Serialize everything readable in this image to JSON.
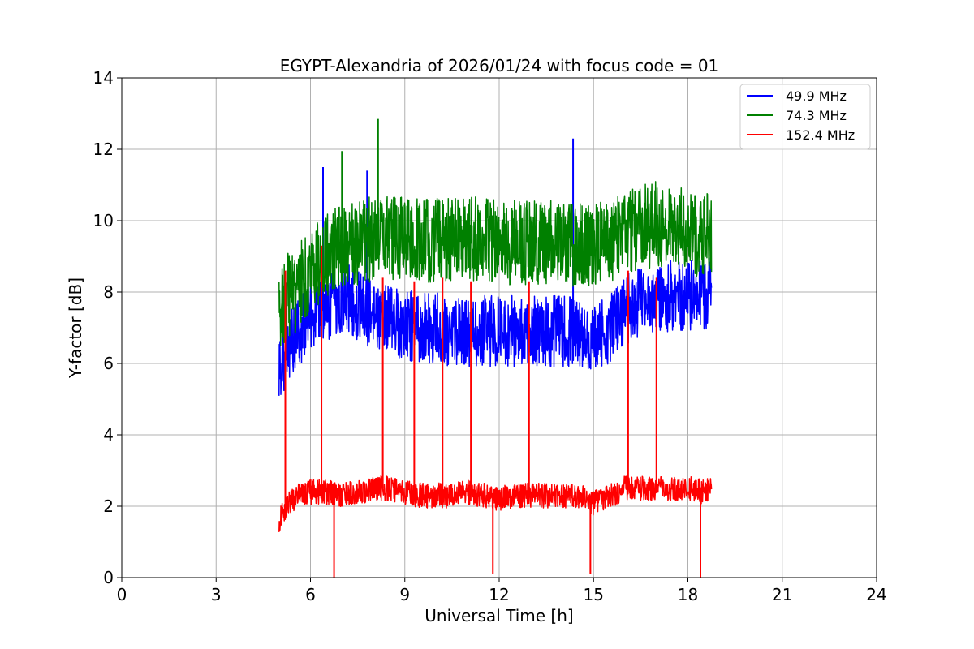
{
  "chart_data": {
    "type": "line",
    "title": "EGYPT-Alexandria of 2026/01/24 with focus code = 01",
    "xlabel": "Universal Time [h]",
    "ylabel": "Y-factor [dB]",
    "xlim": [
      0,
      24
    ],
    "ylim": [
      0,
      14
    ],
    "xticks": [
      0,
      3,
      6,
      9,
      12,
      15,
      18,
      21,
      24
    ],
    "yticks": [
      0,
      2,
      4,
      6,
      8,
      10,
      12,
      14
    ],
    "xtick_labels": [
      "0",
      "3",
      "6",
      "9",
      "12",
      "15",
      "18",
      "21",
      "24"
    ],
    "ytick_labels": [
      "0",
      "2",
      "4",
      "6",
      "8",
      "10",
      "12",
      "14"
    ],
    "grid": true,
    "legend_position": "top-right",
    "series": [
      {
        "name": " 49.9 MHz",
        "color": "#0000ff",
        "x": [
          5.0,
          5.3,
          5.6,
          6.0,
          6.5,
          7.0,
          7.5,
          8.0,
          8.5,
          9.0,
          9.5,
          10.0,
          10.5,
          11.0,
          11.5,
          12.0,
          12.5,
          13.0,
          13.5,
          14.0,
          14.5,
          15.0,
          15.5,
          16.0,
          16.5,
          17.0,
          17.5,
          18.0,
          18.5,
          18.75
        ],
        "y": [
          5.9,
          6.4,
          6.8,
          7.4,
          7.6,
          7.9,
          7.6,
          7.3,
          7.2,
          7.1,
          7.0,
          7.0,
          6.9,
          6.9,
          6.9,
          6.9,
          6.9,
          6.9,
          6.9,
          6.9,
          6.9,
          6.8,
          6.9,
          7.5,
          7.7,
          7.8,
          7.9,
          7.9,
          7.9,
          8.0
        ],
        "spikes": [
          {
            "x": 6.4,
            "y": 11.5
          },
          {
            "x": 7.8,
            "y": 11.4
          },
          {
            "x": 14.35,
            "y": 12.3
          }
        ]
      },
      {
        "name": " 74.3 MHz",
        "color": "#008000",
        "x": [
          5.0,
          5.3,
          5.6,
          6.0,
          6.5,
          7.0,
          7.5,
          8.0,
          8.5,
          9.0,
          9.5,
          10.0,
          10.5,
          11.0,
          11.5,
          12.0,
          12.5,
          13.0,
          13.5,
          14.0,
          14.5,
          15.0,
          15.5,
          16.0,
          16.5,
          17.0,
          17.5,
          18.0,
          18.5,
          18.75
        ],
        "y": [
          7.6,
          7.9,
          8.1,
          8.6,
          9.0,
          9.3,
          9.4,
          9.5,
          9.5,
          9.5,
          9.4,
          9.5,
          9.4,
          9.5,
          9.5,
          9.4,
          9.4,
          9.4,
          9.4,
          9.3,
          9.3,
          9.3,
          9.4,
          9.6,
          9.8,
          9.9,
          9.8,
          9.7,
          9.6,
          9.6
        ],
        "spikes": [
          {
            "x": 7.0,
            "y": 11.95
          },
          {
            "x": 8.15,
            "y": 12.85
          }
        ]
      },
      {
        "name": " 152.4 MHz",
        "color": "#ff0000",
        "x": [
          5.0,
          5.3,
          5.6,
          6.0,
          6.5,
          7.0,
          7.5,
          8.0,
          8.5,
          9.0,
          9.5,
          10.0,
          10.5,
          11.0,
          11.5,
          12.0,
          12.5,
          13.0,
          13.5,
          14.0,
          14.5,
          15.0,
          15.5,
          16.0,
          16.5,
          17.0,
          17.5,
          18.0,
          18.5,
          18.75
        ],
        "y": [
          1.6,
          2.1,
          2.3,
          2.4,
          2.4,
          2.3,
          2.4,
          2.5,
          2.5,
          2.4,
          2.3,
          2.3,
          2.3,
          2.4,
          2.3,
          2.2,
          2.3,
          2.3,
          2.3,
          2.3,
          2.3,
          2.1,
          2.3,
          2.5,
          2.5,
          2.5,
          2.5,
          2.5,
          2.4,
          2.5
        ],
        "spikes": [
          {
            "x": 5.2,
            "y": 8.6
          },
          {
            "x": 6.35,
            "y": 9.3
          },
          {
            "x": 6.75,
            "y": 0.0
          },
          {
            "x": 8.3,
            "y": 8.4
          },
          {
            "x": 9.3,
            "y": 8.3
          },
          {
            "x": 10.2,
            "y": 8.4
          },
          {
            "x": 11.1,
            "y": 8.3
          },
          {
            "x": 11.8,
            "y": 0.1
          },
          {
            "x": 12.95,
            "y": 8.3
          },
          {
            "x": 14.9,
            "y": 0.1
          },
          {
            "x": 16.1,
            "y": 8.6
          },
          {
            "x": 17.0,
            "y": 8.4
          },
          {
            "x": 18.4,
            "y": 0.0
          }
        ]
      }
    ]
  }
}
